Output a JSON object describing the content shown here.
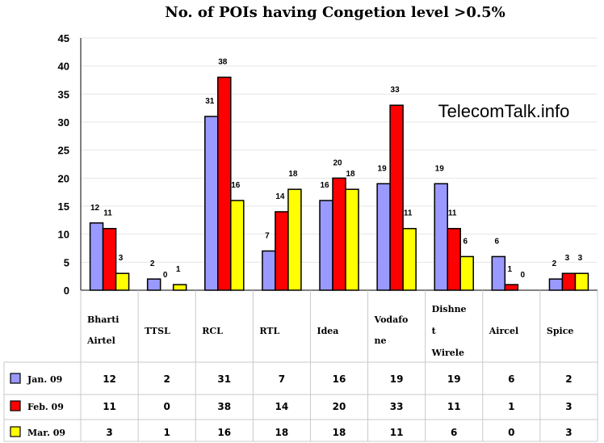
{
  "chart_data": {
    "type": "bar",
    "title": "No. of POIs having Congetion level  >0.5%",
    "watermark": "TelecomTalk.info",
    "categories": [
      [
        "Bharti",
        "Airtel"
      ],
      [
        "TTSL"
      ],
      [
        "RCL"
      ],
      [
        "RTL"
      ],
      [
        "Idea"
      ],
      [
        "Vodafo",
        "ne"
      ],
      [
        "Dishne",
        "t",
        "Wirele"
      ],
      [
        "Aircel"
      ],
      [
        "Spice"
      ]
    ],
    "series": [
      {
        "name": "Jan. 09",
        "color": "#9999ff",
        "values": [
          12,
          2,
          31,
          7,
          16,
          19,
          19,
          6,
          2
        ]
      },
      {
        "name": "Feb. 09",
        "color": "#ff0000",
        "values": [
          11,
          0,
          38,
          14,
          20,
          33,
          11,
          1,
          3
        ]
      },
      {
        "name": "Mar. 09",
        "color": "#ffff00",
        "values": [
          3,
          1,
          16,
          18,
          18,
          11,
          6,
          0,
          3
        ]
      }
    ],
    "yticks": [
      0,
      5,
      10,
      15,
      20,
      25,
      30,
      35,
      40,
      45
    ],
    "ylim": [
      0,
      45
    ],
    "grid": true,
    "legend": "data-table"
  }
}
